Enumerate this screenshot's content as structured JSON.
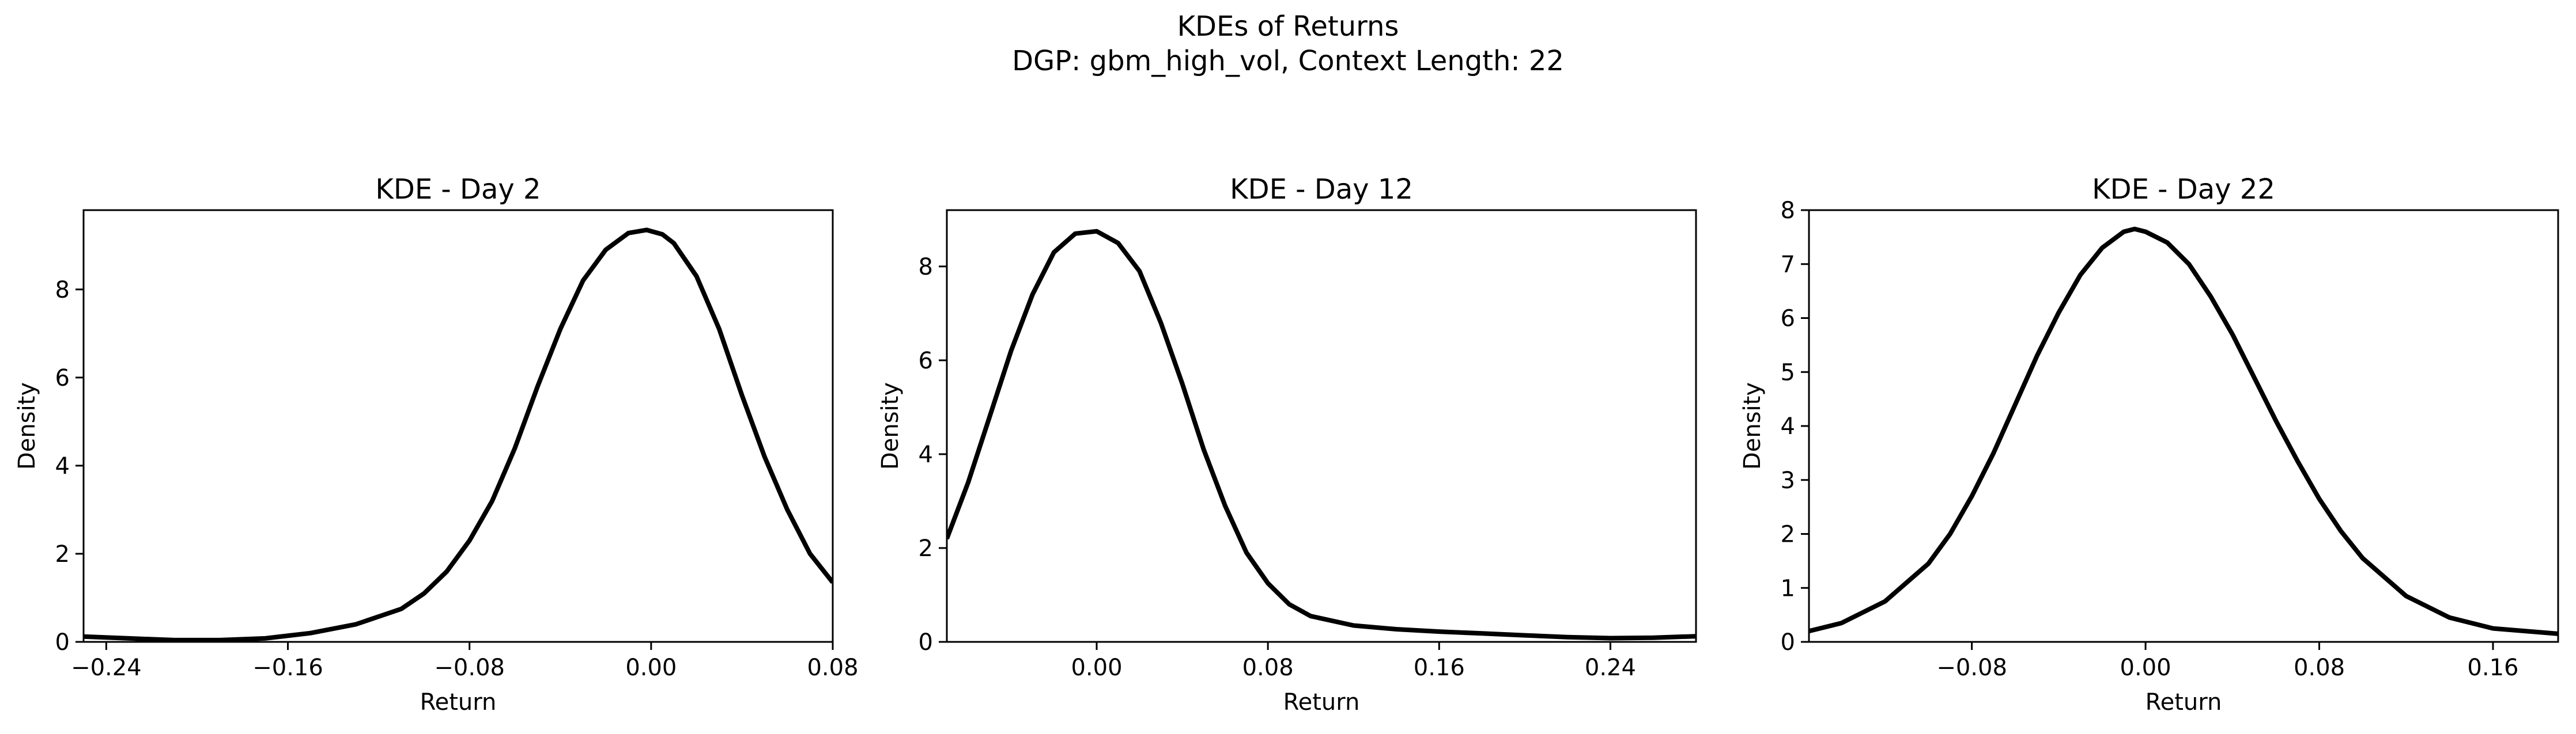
{
  "figure": {
    "title_line1": "KDEs of Returns",
    "title_line2": "DGP: gbm_high_vol, Context Length: 22"
  },
  "colors": {
    "line": "#000000",
    "background": "#ffffff",
    "axes": "#000000"
  },
  "chart_data": [
    {
      "type": "line",
      "title": "KDE - Day 2",
      "xlabel": "Return",
      "ylabel": "Density",
      "xlim": [
        -0.25,
        0.08
      ],
      "ylim": [
        0,
        9.8
      ],
      "xticks": [
        -0.24,
        -0.16,
        -0.08,
        0.0,
        0.08
      ],
      "xtick_labels": [
        "−0.24",
        "−0.16",
        "−0.08",
        "0.00",
        "0.08"
      ],
      "yticks": [
        0,
        2,
        4,
        6,
        8
      ],
      "ytick_labels": [
        "0",
        "2",
        "4",
        "6",
        "8"
      ],
      "grid": false,
      "series": [
        {
          "x": [
            -0.25,
            -0.23,
            -0.21,
            -0.19,
            -0.17,
            -0.15,
            -0.13,
            -0.11,
            -0.1,
            -0.09,
            -0.08,
            -0.07,
            -0.06,
            -0.05,
            -0.04,
            -0.03,
            -0.02,
            -0.01,
            -0.002,
            0.005,
            0.01,
            0.02,
            0.03,
            0.04,
            0.05,
            0.06,
            0.07,
            0.08
          ],
          "y": [
            0.12,
            0.08,
            0.04,
            0.04,
            0.08,
            0.2,
            0.4,
            0.75,
            1.1,
            1.6,
            2.3,
            3.2,
            4.4,
            5.8,
            7.1,
            8.2,
            8.9,
            9.28,
            9.35,
            9.25,
            9.05,
            8.3,
            7.1,
            5.6,
            4.2,
            3.0,
            2.0,
            1.35
          ]
        }
      ]
    },
    {
      "type": "line",
      "title": "KDE - Day 12",
      "xlabel": "Return",
      "ylabel": "Density",
      "xlim": [
        -0.07,
        0.28
      ],
      "ylim": [
        0,
        9.2
      ],
      "xticks": [
        0.0,
        0.08,
        0.16,
        0.24
      ],
      "xtick_labels": [
        "0.00",
        "0.08",
        "0.16",
        "0.24"
      ],
      "yticks": [
        0,
        2,
        4,
        6,
        8
      ],
      "ytick_labels": [
        "0",
        "2",
        "4",
        "6",
        "8"
      ],
      "grid": false,
      "series": [
        {
          "x": [
            -0.07,
            -0.06,
            -0.05,
            -0.04,
            -0.03,
            -0.02,
            -0.01,
            0.0,
            0.01,
            0.02,
            0.03,
            0.04,
            0.05,
            0.06,
            0.07,
            0.08,
            0.09,
            0.1,
            0.12,
            0.14,
            0.16,
            0.18,
            0.2,
            0.22,
            0.24,
            0.26,
            0.28
          ],
          "y": [
            2.2,
            3.4,
            4.8,
            6.2,
            7.4,
            8.3,
            8.7,
            8.75,
            8.5,
            7.9,
            6.8,
            5.5,
            4.1,
            2.9,
            1.9,
            1.25,
            0.8,
            0.55,
            0.35,
            0.27,
            0.22,
            0.18,
            0.14,
            0.1,
            0.08,
            0.09,
            0.12
          ]
        }
      ]
    },
    {
      "type": "line",
      "title": "KDE - Day 22",
      "xlabel": "Return",
      "ylabel": "Density",
      "xlim": [
        -0.155,
        0.19
      ],
      "ylim": [
        0,
        8
      ],
      "xticks": [
        -0.08,
        0.0,
        0.08,
        0.16
      ],
      "xtick_labels": [
        "−0.08",
        "0.00",
        "0.08",
        "0.16"
      ],
      "yticks": [
        0,
        1,
        2,
        3,
        4,
        5,
        6,
        7,
        8
      ],
      "ytick_labels": [
        "0",
        "1",
        "2",
        "3",
        "4",
        "5",
        "6",
        "7",
        "8"
      ],
      "grid": false,
      "series": [
        {
          "x": [
            -0.155,
            -0.14,
            -0.12,
            -0.1,
            -0.09,
            -0.08,
            -0.07,
            -0.06,
            -0.05,
            -0.04,
            -0.03,
            -0.02,
            -0.01,
            -0.005,
            0.0,
            0.01,
            0.02,
            0.03,
            0.04,
            0.05,
            0.06,
            0.07,
            0.08,
            0.09,
            0.1,
            0.12,
            0.14,
            0.16,
            0.19
          ],
          "y": [
            0.2,
            0.35,
            0.75,
            1.45,
            2.0,
            2.7,
            3.5,
            4.4,
            5.3,
            6.1,
            6.8,
            7.3,
            7.6,
            7.65,
            7.6,
            7.4,
            7.0,
            6.4,
            5.7,
            4.9,
            4.1,
            3.35,
            2.65,
            2.05,
            1.55,
            0.85,
            0.45,
            0.25,
            0.15
          ]
        }
      ]
    }
  ]
}
